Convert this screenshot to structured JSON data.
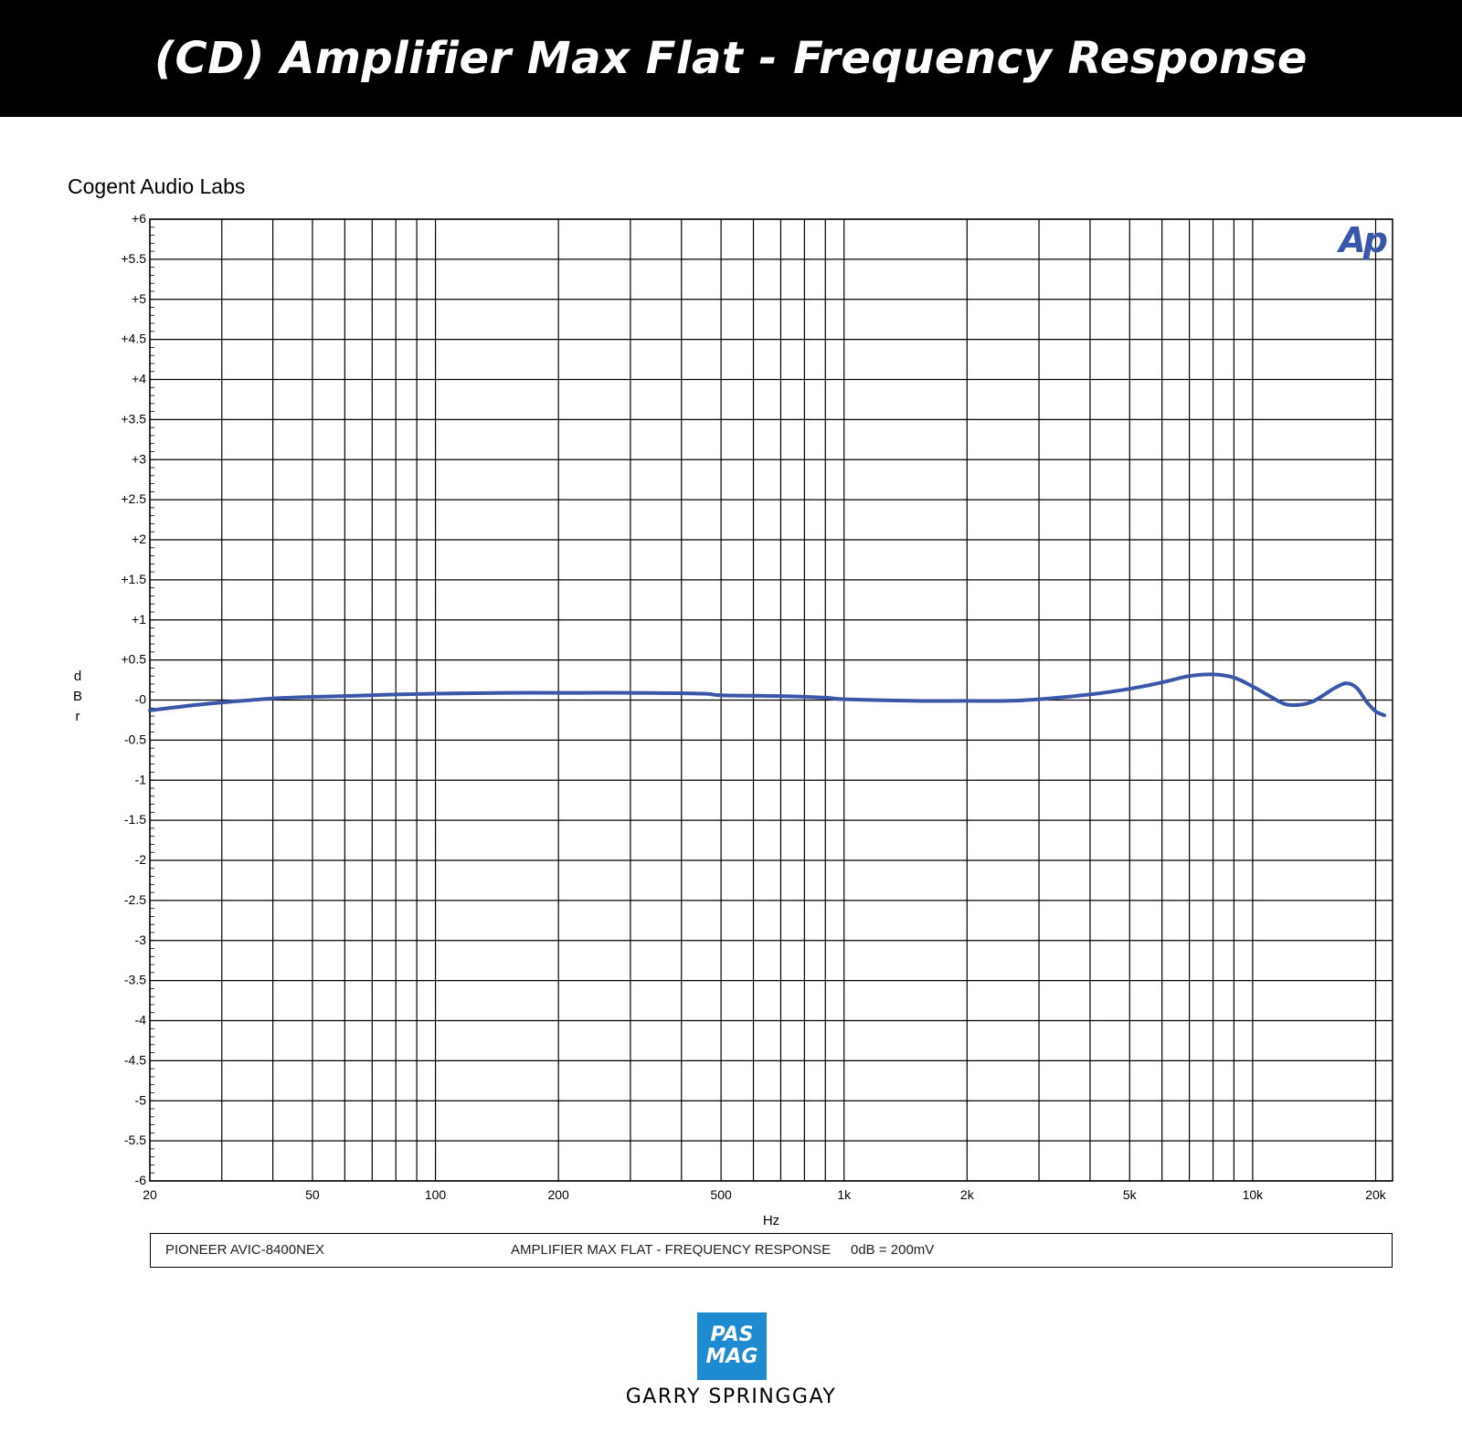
{
  "header": {
    "title": "(CD) Amplifier Max Flat - Frequency Response"
  },
  "lab_name": "Cogent Audio Labs",
  "ap_logo": "Ap",
  "legend": {
    "device": "PIONEER AVIC-8400NEX",
    "description": "AMPLIFIER MAX FLAT - FREQUENCY RESPONSE",
    "reference": "0dB = 200mV"
  },
  "footer": {
    "logo_line1": "PAS",
    "logo_line2": "MAG",
    "author": "GARRY SPRINGGAY"
  },
  "colors": {
    "header_bg": "#000000",
    "trace": "#3a56a8",
    "ap_logo": "#3a56a8",
    "logo_bg": "#1e8ad0"
  },
  "chart_data": {
    "type": "line",
    "xlabel": "Hz",
    "ylabel": "dBr",
    "x_scale": "log",
    "xlim": [
      20,
      22000
    ],
    "ylim": [
      -6,
      6
    ],
    "grid": true,
    "x_ticks": [
      {
        "value": 20,
        "label": "20"
      },
      {
        "value": 50,
        "label": "50"
      },
      {
        "value": 100,
        "label": "100"
      },
      {
        "value": 200,
        "label": "200"
      },
      {
        "value": 500,
        "label": "500"
      },
      {
        "value": 1000,
        "label": "1k"
      },
      {
        "value": 2000,
        "label": "2k"
      },
      {
        "value": 5000,
        "label": "5k"
      },
      {
        "value": 10000,
        "label": "10k"
      },
      {
        "value": 20000,
        "label": "20k"
      }
    ],
    "y_ticks": [
      {
        "value": 6,
        "label": "+6"
      },
      {
        "value": 5.5,
        "label": "+5.5"
      },
      {
        "value": 5,
        "label": "+5"
      },
      {
        "value": 4.5,
        "label": "+4.5"
      },
      {
        "value": 4,
        "label": "+4"
      },
      {
        "value": 3.5,
        "label": "+3.5"
      },
      {
        "value": 3,
        "label": "+3"
      },
      {
        "value": 2.5,
        "label": "+2.5"
      },
      {
        "value": 2,
        "label": "+2"
      },
      {
        "value": 1.5,
        "label": "+1.5"
      },
      {
        "value": 1,
        "label": "+1"
      },
      {
        "value": 0.5,
        "label": "+0.5"
      },
      {
        "value": 0,
        "label": "-0"
      },
      {
        "value": -0.5,
        "label": "-0.5"
      },
      {
        "value": -1,
        "label": "-1"
      },
      {
        "value": -1.5,
        "label": "-1.5"
      },
      {
        "value": -2,
        "label": "-2"
      },
      {
        "value": -2.5,
        "label": "-2.5"
      },
      {
        "value": -3,
        "label": "-3"
      },
      {
        "value": -3.5,
        "label": "-3.5"
      },
      {
        "value": -4,
        "label": "-4"
      },
      {
        "value": -4.5,
        "label": "-4.5"
      },
      {
        "value": -5,
        "label": "-5"
      },
      {
        "value": -5.5,
        "label": "-5.5"
      },
      {
        "value": -6,
        "label": "-6"
      }
    ],
    "series": [
      {
        "x": [
          20,
          25,
          30,
          40,
          50,
          60,
          70,
          80,
          100,
          150,
          200,
          300,
          450,
          500,
          700,
          900,
          1000,
          1500,
          2000,
          2500,
          3000,
          4000,
          5000,
          6000,
          7000,
          8000,
          9000,
          10000,
          11000,
          12000,
          13000,
          14000,
          15000,
          16000,
          17000,
          18000,
          19000,
          20000,
          21000
        ],
        "y": [
          -0.13,
          -0.07,
          -0.03,
          0.02,
          0.04,
          0.05,
          0.06,
          0.07,
          0.08,
          0.09,
          0.09,
          0.09,
          0.08,
          0.06,
          0.05,
          0.03,
          0.01,
          -0.01,
          -0.01,
          -0.01,
          0.01,
          0.07,
          0.14,
          0.22,
          0.3,
          0.32,
          0.28,
          0.17,
          0.05,
          -0.05,
          -0.06,
          -0.02,
          0.07,
          0.16,
          0.21,
          0.15,
          -0.02,
          -0.14,
          -0.19
        ]
      }
    ]
  }
}
